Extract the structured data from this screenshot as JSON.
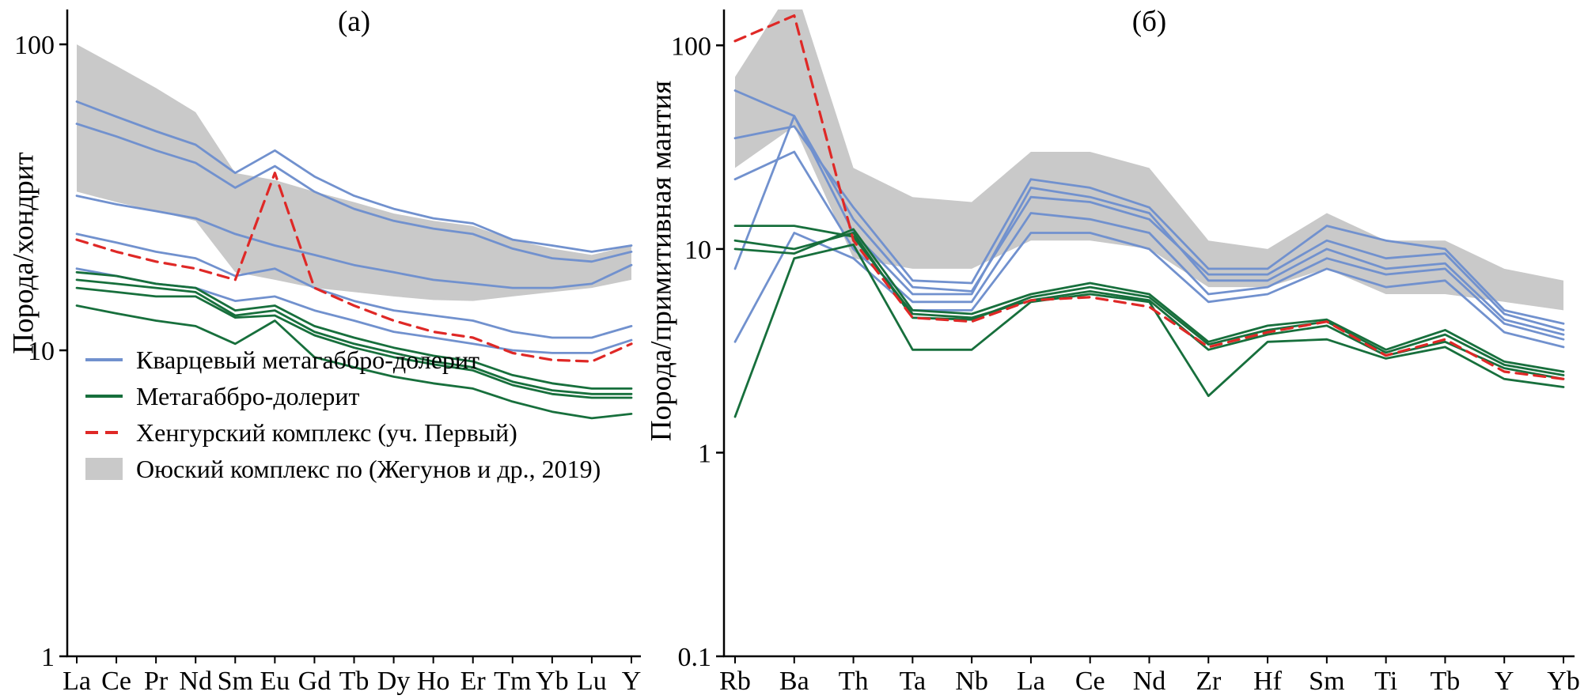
{
  "colors": {
    "blue": "#7191ce",
    "green": "#176f3c",
    "red": "#df2826",
    "band": "#c9c9c9",
    "axis": "#000000",
    "text": "#000000"
  },
  "legend": {
    "items": [
      {
        "swatch": "line-blue",
        "label": "Кварцевый метагаббро-долерит"
      },
      {
        "swatch": "line-green",
        "label": "Метагаббро-долерит"
      },
      {
        "swatch": "dash-red",
        "label": "Хенгурский комплекс (уч. Первый)"
      },
      {
        "swatch": "box-gray",
        "label": "Оюский комплекс по (Жегунов и др., 2019)"
      }
    ]
  },
  "chart_data": [
    {
      "id": "panel-a",
      "type": "line",
      "title": "(а)",
      "xlabel": "",
      "ylabel": "Порода/хондрит",
      "yscale": "log",
      "grid": false,
      "ylim": [
        1,
        130
      ],
      "yticks": [
        100,
        10,
        1
      ],
      "ytick_labels": [
        "100",
        "10",
        "1"
      ],
      "categories": [
        "La",
        "Ce",
        "Pr",
        "Nd",
        "Sm",
        "Eu",
        "Gd",
        "Tb",
        "Dy",
        "Ho",
        "Er",
        "Tm",
        "Yb",
        "Lu",
        "Y"
      ],
      "band": {
        "name": "Оюский комплекс по (Жегунов и др., 2019)",
        "upper": [
          100,
          85,
          72,
          60,
          38,
          36,
          33,
          30.5,
          28,
          26.5,
          25.5,
          23,
          21.5,
          20.5,
          22
        ],
        "lower": [
          33,
          30.5,
          28.5,
          26.5,
          18,
          17,
          16,
          15.5,
          15,
          14.6,
          14.5,
          15,
          15.5,
          16,
          17
        ]
      },
      "series": [
        {
          "name": "Кварцевый метагаббро-долерит",
          "color_key": "blue",
          "dash": false,
          "values": [
            65,
            58,
            52,
            47,
            38,
            45,
            37,
            32,
            29,
            27,
            26,
            23,
            22,
            21,
            22
          ]
        },
        {
          "name": "Кварцевый метагаббро-долерит",
          "color_key": "blue",
          "dash": false,
          "values": [
            55,
            50,
            45,
            41,
            34,
            40,
            33,
            29,
            26.5,
            25,
            24,
            21.5,
            20,
            19.5,
            21
          ]
        },
        {
          "name": "Кварцевый метагаббро-долерит",
          "color_key": "blue",
          "dash": false,
          "values": [
            32,
            30,
            28.5,
            27,
            24,
            22,
            20.5,
            19,
            18,
            17,
            16.5,
            16,
            16,
            16.5,
            19
          ]
        },
        {
          "name": "Кварцевый метагаббро-долерит",
          "color_key": "blue",
          "dash": false,
          "values": [
            24,
            22.5,
            21,
            20,
            17.5,
            18.5,
            16,
            14.5,
            13.5,
            13,
            12.5,
            11.5,
            11,
            11,
            12
          ]
        },
        {
          "name": "Кварцевый метагаббро-долерит",
          "color_key": "blue",
          "dash": false,
          "values": [
            18.5,
            17.5,
            16.5,
            16,
            14.5,
            15,
            13.5,
            12.5,
            11.5,
            11,
            10.5,
            10,
            9.8,
            9.8,
            10.8
          ]
        },
        {
          "name": "Метагаббро-долерит",
          "color_key": "green",
          "dash": false,
          "values": [
            18,
            17.5,
            16.5,
            16,
            13.5,
            14,
            12,
            11,
            10.2,
            9.6,
            9.2,
            8.3,
            7.8,
            7.5,
            7.5
          ]
        },
        {
          "name": "Метагаббро-долерит",
          "color_key": "green",
          "dash": false,
          "values": [
            17,
            16.5,
            16,
            15.5,
            13,
            13.5,
            11.5,
            10.5,
            9.8,
            9.2,
            8.8,
            7.9,
            7.4,
            7.2,
            7.2
          ]
        },
        {
          "name": "Метагаббро-долерит",
          "color_key": "green",
          "dash": false,
          "values": [
            16,
            15.5,
            15,
            15,
            12.8,
            13,
            11.2,
            10.2,
            9.5,
            9,
            8.6,
            7.7,
            7.2,
            7,
            7
          ]
        },
        {
          "name": "Метагаббро-долерит",
          "color_key": "green",
          "dash": false,
          "values": [
            14,
            13.2,
            12.5,
            12,
            10.5,
            12.5,
            9.5,
            8.8,
            8.2,
            7.8,
            7.5,
            6.8,
            6.3,
            6,
            6.2
          ]
        },
        {
          "name": "Хенгурский комплекс (уч. Первый)",
          "color_key": "red",
          "dash": true,
          "values": [
            23,
            21,
            19.5,
            18.5,
            17,
            38,
            16,
            14,
            12.5,
            11.5,
            11,
            9.8,
            9.3,
            9.2,
            10.5
          ]
        }
      ]
    },
    {
      "id": "panel-b",
      "type": "line",
      "title": "(б)",
      "xlabel": "",
      "ylabel": "Порода/примитивная мантия",
      "yscale": "log",
      "grid": false,
      "ylim": [
        0.1,
        150
      ],
      "yticks": [
        100,
        10,
        1,
        0.1
      ],
      "ytick_labels": [
        "100",
        "10",
        "1",
        "0.1"
      ],
      "categories": [
        "Rb",
        "Ba",
        "Th",
        "Ta",
        "Nb",
        "La",
        "Ce",
        "Nd",
        "Zr",
        "Hf",
        "Sm",
        "Ti",
        "Tb",
        "Y",
        "Yb"
      ],
      "band": {
        "name": "Оюский комплекс по (Жегунов и др., 2019)",
        "upper": [
          70,
          200,
          25,
          18,
          17,
          30,
          30,
          25,
          11,
          10,
          15,
          11,
          11,
          8,
          7
        ],
        "lower": [
          25,
          40,
          9,
          8,
          8,
          11,
          11,
          10,
          6.5,
          6.5,
          8,
          6,
          6,
          5.5,
          5
        ]
      },
      "series": [
        {
          "name": "Кварцевый метагаббро-долерит",
          "color_key": "blue",
          "dash": false,
          "values": [
            60,
            45,
            14,
            6.5,
            6.2,
            18,
            17,
            14,
            7.5,
            7.5,
            11,
            9,
            9.5,
            4.8,
            4.0
          ]
        },
        {
          "name": "Кварцевый метагаббро-долерит",
          "color_key": "blue",
          "dash": false,
          "values": [
            35,
            40,
            16,
            7,
            6.8,
            22,
            20,
            16,
            8,
            8,
            13,
            11,
            10,
            5,
            4.3
          ]
        },
        {
          "name": "Кварцевый метагаббро-долерит",
          "color_key": "blue",
          "dash": false,
          "values": [
            22,
            30,
            10,
            5.5,
            5.5,
            15,
            14,
            12,
            6,
            6.5,
            9,
            7.5,
            8,
            4.3,
            3.6
          ]
        },
        {
          "name": "Кварцевый метагаббро-долерит",
          "color_key": "blue",
          "dash": false,
          "values": [
            8,
            45,
            12,
            6,
            6,
            20,
            18,
            15,
            7,
            7,
            10,
            8,
            8.5,
            4.5,
            3.8
          ]
        },
        {
          "name": "Кварцевый метагаббро-долерит",
          "color_key": "blue",
          "dash": false,
          "values": [
            3.5,
            12,
            9,
            5,
            5,
            12,
            12,
            10,
            5.5,
            6,
            8,
            6.5,
            7,
            3.9,
            3.3
          ]
        },
        {
          "name": "Метагаббро-долерит",
          "color_key": "green",
          "dash": false,
          "values": [
            10,
            9.5,
            12.5,
            5,
            4.8,
            6,
            6.8,
            6,
            3.5,
            4.2,
            4.5,
            3.2,
            4,
            2.8,
            2.5
          ]
        },
        {
          "name": "Метагаббро-долерит",
          "color_key": "green",
          "dash": false,
          "values": [
            13,
            13,
            11.5,
            4.8,
            4.6,
            5.6,
            6.2,
            5.6,
            3.2,
            3.8,
            4.2,
            3,
            3.5,
            2.6,
            2.3
          ]
        },
        {
          "name": "Метагаббро-долерит",
          "color_key": "green",
          "dash": false,
          "values": [
            1.5,
            9,
            10.5,
            3.2,
            3.2,
            5.5,
            6,
            5.5,
            1.9,
            3.5,
            3.6,
            2.9,
            3.3,
            2.3,
            2.1
          ]
        },
        {
          "name": "Метагаббро-долерит",
          "color_key": "green",
          "dash": false,
          "values": [
            11,
            10,
            12,
            4.6,
            4.5,
            5.8,
            6.5,
            5.8,
            3.4,
            4,
            4.4,
            3.1,
            3.8,
            2.7,
            2.4
          ]
        },
        {
          "name": "Хенгурский комплекс (уч. Первый)",
          "color_key": "red",
          "dash": true,
          "values": [
            105,
            140,
            11,
            4.6,
            4.4,
            5.6,
            5.8,
            5.2,
            3.3,
            3.9,
            4.4,
            3.0,
            3.6,
            2.5,
            2.3
          ]
        }
      ]
    }
  ]
}
